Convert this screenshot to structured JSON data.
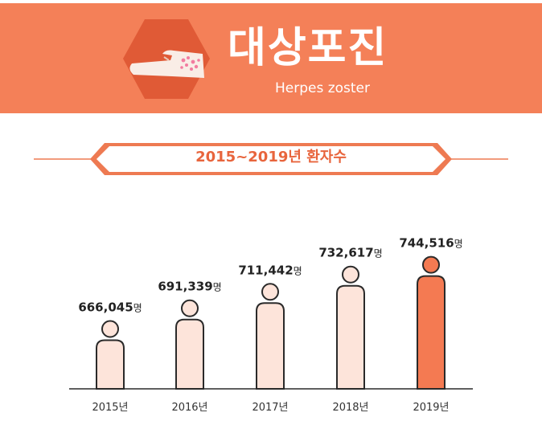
{
  "header": {
    "title_ko": "대상포진",
    "title_en": "Herpes zoster",
    "icon": "rash-on-arm-icon"
  },
  "section": {
    "title": "2015~2019년 환자수"
  },
  "colors": {
    "banner": "#f48058",
    "accent": "#e8653d",
    "figure_light": "#fde4da",
    "figure_highlight": "#f47a52",
    "outline": "#2a2a2a"
  },
  "chart_data": {
    "type": "bar",
    "categories": [
      "2015년",
      "2016년",
      "2017년",
      "2018년",
      "2019년"
    ],
    "values": [
      666045,
      691339,
      711442,
      732617,
      744516
    ],
    "value_labels": [
      "666,045",
      "691,339",
      "711,442",
      "732,617",
      "744,516"
    ],
    "unit": "명",
    "highlight_index": 4,
    "title": "2015~2019년 환자수"
  }
}
